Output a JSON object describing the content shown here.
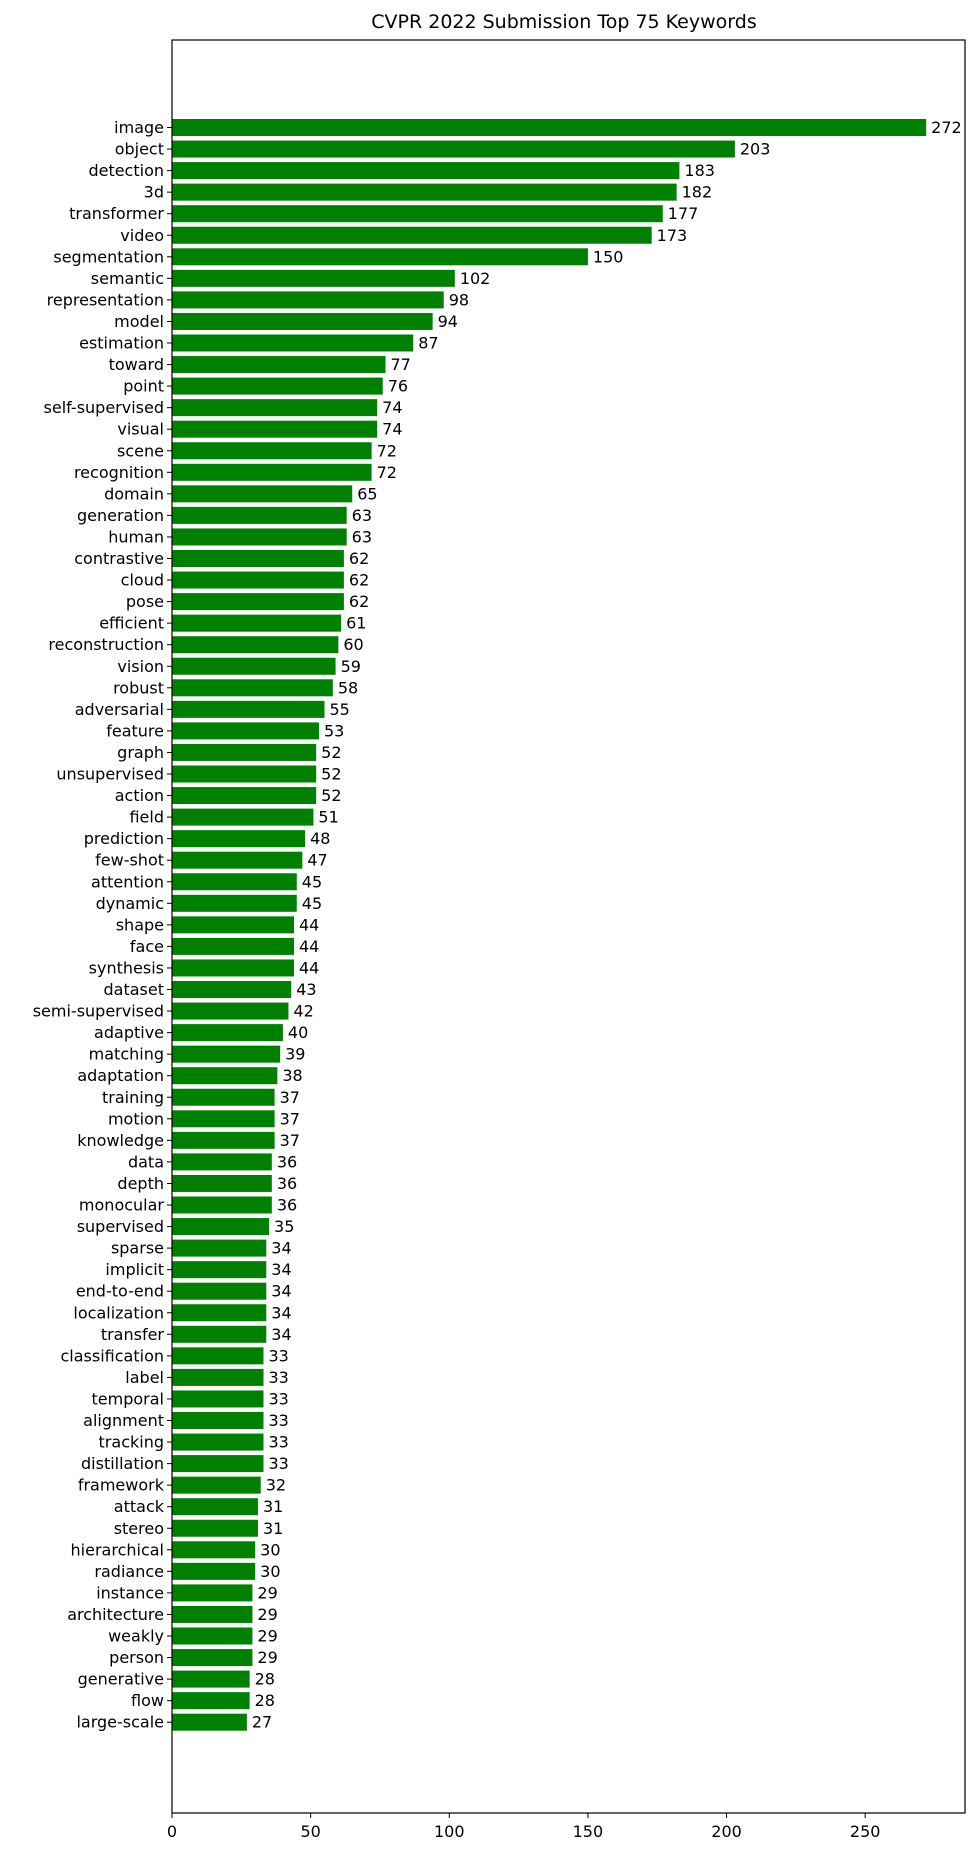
{
  "chart_data": {
    "type": "bar",
    "orientation": "horizontal",
    "title": "CVPR 2022 Submission Top 75 Keywords",
    "xlabel": "",
    "ylabel": "",
    "bar_color": "#008000",
    "xlim": [
      0,
      286
    ],
    "x_ticks": [
      0,
      50,
      100,
      150,
      200,
      250
    ],
    "grid": false,
    "legend": false,
    "categories": [
      "image",
      "object",
      "detection",
      "3d",
      "transformer",
      "video",
      "segmentation",
      "semantic",
      "representation",
      "model",
      "estimation",
      "toward",
      "point",
      "self-supervised",
      "visual",
      "scene",
      "recognition",
      "domain",
      "generation",
      "human",
      "contrastive",
      "cloud",
      "pose",
      "efficient",
      "reconstruction",
      "vision",
      "robust",
      "adversarial",
      "feature",
      "graph",
      "unsupervised",
      "action",
      "field",
      "prediction",
      "few-shot",
      "attention",
      "dynamic",
      "shape",
      "face",
      "synthesis",
      "dataset",
      "semi-supervised",
      "adaptive",
      "matching",
      "adaptation",
      "training",
      "motion",
      "knowledge",
      "data",
      "depth",
      "monocular",
      "supervised",
      "sparse",
      "implicit",
      "end-to-end",
      "localization",
      "transfer",
      "classification",
      "label",
      "temporal",
      "alignment",
      "tracking",
      "distillation",
      "framework",
      "attack",
      "stereo",
      "hierarchical",
      "radiance",
      "instance",
      "architecture",
      "weakly",
      "person",
      "generative",
      "flow",
      "large-scale"
    ],
    "values": [
      272,
      203,
      183,
      182,
      177,
      173,
      150,
      102,
      98,
      94,
      87,
      77,
      76,
      74,
      74,
      72,
      72,
      65,
      63,
      63,
      62,
      62,
      62,
      61,
      60,
      59,
      58,
      55,
      53,
      52,
      52,
      52,
      51,
      48,
      47,
      45,
      45,
      44,
      44,
      44,
      43,
      42,
      40,
      39,
      38,
      37,
      37,
      37,
      36,
      36,
      36,
      35,
      34,
      34,
      34,
      34,
      34,
      33,
      33,
      33,
      33,
      33,
      33,
      32,
      31,
      31,
      30,
      30,
      29,
      29,
      29,
      29,
      28,
      28,
      27
    ]
  }
}
